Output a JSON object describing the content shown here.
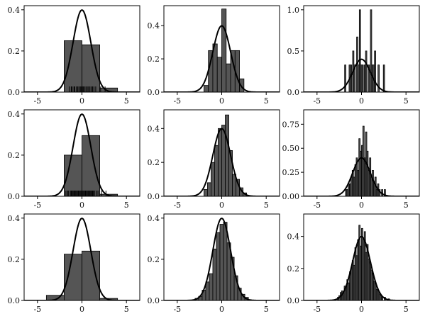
{
  "chart_data": [
    {
      "type": "bar",
      "panel": "row1-col1",
      "xlim": [
        -6.5,
        6.5
      ],
      "ylim": [
        0,
        0.42
      ],
      "xticks": [
        "-5",
        "0",
        "5"
      ],
      "yticks": [
        "0.0",
        "0.2",
        "0.4"
      ],
      "ytick_values": [
        0,
        0.2,
        0.4
      ],
      "bins": [
        {
          "x0": -2.0,
          "x1": 0.0,
          "y": 0.25
        },
        {
          "x0": 0.0,
          "x1": 2.0,
          "y": 0.23
        },
        {
          "x0": 2.0,
          "x1": 4.0,
          "y": 0.02
        }
      ],
      "rug": [
        -1.4,
        -1.2,
        -1.1,
        -0.9,
        -0.8,
        -0.6,
        -0.5,
        -0.35,
        -0.2,
        -0.1,
        0.05,
        0.15,
        0.3,
        0.45,
        0.6,
        0.75,
        0.9,
        1.05,
        1.2,
        1.35,
        1.55,
        2.1,
        2.6
      ],
      "curve": "normal"
    },
    {
      "type": "bar",
      "panel": "row1-col2",
      "xlim": [
        -6.5,
        6.5
      ],
      "ylim": [
        0,
        0.52
      ],
      "xticks": [
        "-5",
        "0",
        "5"
      ],
      "yticks": [
        "0.0",
        "0.2",
        "0.4"
      ],
      "ytick_values": [
        0,
        0.2,
        0.4
      ],
      "bins": [
        {
          "x0": -2.0,
          "x1": -1.5,
          "y": 0.04
        },
        {
          "x0": -1.5,
          "x1": -1.0,
          "y": 0.25
        },
        {
          "x0": -1.0,
          "x1": -0.5,
          "y": 0.29
        },
        {
          "x0": -0.5,
          "x1": 0.0,
          "y": 0.21
        },
        {
          "x0": 0.0,
          "x1": 0.5,
          "y": 0.5
        },
        {
          "x0": 0.5,
          "x1": 1.0,
          "y": 0.17
        },
        {
          "x0": 1.0,
          "x1": 1.5,
          "y": 0.25
        },
        {
          "x0": 1.5,
          "x1": 2.0,
          "y": 0.25
        },
        {
          "x0": 2.0,
          "x1": 2.5,
          "y": 0.08
        }
      ],
      "rug": [],
      "curve": "normal"
    },
    {
      "type": "bar",
      "panel": "row1-col3",
      "xlim": [
        -6.5,
        6.5
      ],
      "ylim": [
        0,
        1.05
      ],
      "xticks": [
        "-5",
        "0",
        "5"
      ],
      "yticks": [
        "0.0",
        "0.5",
        "1.0"
      ],
      "ytick_values": [
        0,
        0.5,
        1.0
      ],
      "bins": [
        {
          "x0": -1.9,
          "x1": -1.75,
          "y": 0.33
        },
        {
          "x0": -1.4,
          "x1": -1.25,
          "y": 0.33
        },
        {
          "x0": -1.25,
          "x1": -1.1,
          "y": 0.33
        },
        {
          "x0": -1.0,
          "x1": -0.85,
          "y": 0.5
        },
        {
          "x0": -0.85,
          "x1": -0.7,
          "y": 0.33
        },
        {
          "x0": -0.55,
          "x1": -0.4,
          "y": 0.67
        },
        {
          "x0": -0.4,
          "x1": -0.25,
          "y": 0.33
        },
        {
          "x0": -0.25,
          "x1": -0.1,
          "y": 1.0
        },
        {
          "x0": -0.1,
          "x1": 0.05,
          "y": 0.33
        },
        {
          "x0": 0.05,
          "x1": 0.2,
          "y": 0.33
        },
        {
          "x0": 0.3,
          "x1": 0.45,
          "y": 0.33
        },
        {
          "x0": 0.45,
          "x1": 0.6,
          "y": 0.5
        },
        {
          "x0": 0.75,
          "x1": 0.9,
          "y": 0.33
        },
        {
          "x0": 1.0,
          "x1": 1.15,
          "y": 1.0
        },
        {
          "x0": 1.15,
          "x1": 1.3,
          "y": 0.33
        },
        {
          "x0": 1.3,
          "x1": 1.45,
          "y": 0.33
        },
        {
          "x0": 1.45,
          "x1": 1.6,
          "y": 0.5
        },
        {
          "x0": 1.85,
          "x1": 2.0,
          "y": 0.33
        },
        {
          "x0": 2.45,
          "x1": 2.6,
          "y": 0.33
        }
      ],
      "rug": [],
      "curve": "normal"
    },
    {
      "type": "bar",
      "panel": "row2-col1",
      "xlim": [
        -6.5,
        6.5
      ],
      "ylim": [
        0,
        0.42
      ],
      "xticks": [
        "-5",
        "0",
        "5"
      ],
      "yticks": [
        "0.0",
        "0.2",
        "0.4"
      ],
      "ytick_values": [
        0,
        0.2,
        0.4
      ],
      "bins": [
        {
          "x0": -2.0,
          "x1": 0.0,
          "y": 0.2
        },
        {
          "x0": 0.0,
          "x1": 2.0,
          "y": 0.295
        },
        {
          "x0": 2.0,
          "x1": 4.0,
          "y": 0.01
        }
      ],
      "rug": [
        -1.8,
        -1.6,
        -1.5,
        -1.3,
        -1.2,
        -1.1,
        -1.0,
        -0.9,
        -0.8,
        -0.7,
        -0.6,
        -0.5,
        -0.4,
        -0.3,
        -0.2,
        -0.1,
        0.0,
        0.1,
        0.2,
        0.3,
        0.4,
        0.5,
        0.6,
        0.7,
        0.8,
        0.9,
        1.0,
        1.1,
        1.2,
        1.3,
        1.4,
        1.6,
        1.8,
        2.2,
        2.7
      ],
      "curve": "normal"
    },
    {
      "type": "bar",
      "panel": "row2-col2",
      "xlim": [
        -6.5,
        6.5
      ],
      "ylim": [
        0,
        0.51
      ],
      "xticks": [
        "-5",
        "0",
        "5"
      ],
      "yticks": [
        "0.0",
        "0.2",
        "0.4"
      ],
      "ytick_values": [
        0,
        0.2,
        0.4
      ],
      "bins": [
        {
          "x0": -2.0,
          "x1": -1.6,
          "y": 0.04
        },
        {
          "x0": -1.6,
          "x1": -1.2,
          "y": 0.08
        },
        {
          "x0": -1.2,
          "x1": -0.8,
          "y": 0.2
        },
        {
          "x0": -0.8,
          "x1": -0.4,
          "y": 0.3
        },
        {
          "x0": -0.4,
          "x1": 0.0,
          "y": 0.4
        },
        {
          "x0": 0.0,
          "x1": 0.4,
          "y": 0.42
        },
        {
          "x0": 0.4,
          "x1": 0.8,
          "y": 0.48
        },
        {
          "x0": 0.8,
          "x1": 1.2,
          "y": 0.27
        },
        {
          "x0": 1.2,
          "x1": 1.6,
          "y": 0.13
        },
        {
          "x0": 1.6,
          "x1": 2.0,
          "y": 0.1
        },
        {
          "x0": 2.0,
          "x1": 2.4,
          "y": 0.05
        },
        {
          "x0": 2.4,
          "x1": 2.8,
          "y": 0.02
        }
      ],
      "rug": [],
      "curve": "normal"
    },
    {
      "type": "bar",
      "panel": "row2-col3",
      "xlim": [
        -6.5,
        6.5
      ],
      "ylim": [
        0,
        0.9
      ],
      "xticks": [
        "-5",
        "0",
        "5"
      ],
      "yticks": [
        "0.00",
        "0.25",
        "0.50",
        "0.75"
      ],
      "ytick_values": [
        0,
        0.25,
        0.5,
        0.75
      ],
      "bins": [
        {
          "x0": -1.8,
          "x1": -1.65,
          "y": 0.07
        },
        {
          "x0": -1.65,
          "x1": -1.5,
          "y": 0.07
        },
        {
          "x0": -1.5,
          "x1": -1.35,
          "y": 0.13
        },
        {
          "x0": -1.35,
          "x1": -1.2,
          "y": 0.13
        },
        {
          "x0": -1.2,
          "x1": -1.05,
          "y": 0.2
        },
        {
          "x0": -1.05,
          "x1": -0.9,
          "y": 0.27
        },
        {
          "x0": -0.9,
          "x1": -0.75,
          "y": 0.2
        },
        {
          "x0": -0.75,
          "x1": -0.6,
          "y": 0.33
        },
        {
          "x0": -0.6,
          "x1": -0.45,
          "y": 0.4
        },
        {
          "x0": -0.45,
          "x1": -0.3,
          "y": 0.27
        },
        {
          "x0": -0.3,
          "x1": -0.15,
          "y": 0.6
        },
        {
          "x0": -0.15,
          "x1": 0.0,
          "y": 0.47
        },
        {
          "x0": 0.0,
          "x1": 0.15,
          "y": 0.53
        },
        {
          "x0": 0.15,
          "x1": 0.3,
          "y": 0.73
        },
        {
          "x0": 0.3,
          "x1": 0.45,
          "y": 0.4
        },
        {
          "x0": 0.45,
          "x1": 0.6,
          "y": 0.67
        },
        {
          "x0": 0.6,
          "x1": 0.75,
          "y": 0.47
        },
        {
          "x0": 0.75,
          "x1": 0.9,
          "y": 0.27
        },
        {
          "x0": 0.9,
          "x1": 1.05,
          "y": 0.4
        },
        {
          "x0": 1.05,
          "x1": 1.2,
          "y": 0.2
        },
        {
          "x0": 1.2,
          "x1": 1.35,
          "y": 0.27
        },
        {
          "x0": 1.35,
          "x1": 1.5,
          "y": 0.13
        },
        {
          "x0": 1.5,
          "x1": 1.65,
          "y": 0.2
        },
        {
          "x0": 1.65,
          "x1": 1.8,
          "y": 0.07
        },
        {
          "x0": 1.8,
          "x1": 1.95,
          "y": 0.13
        },
        {
          "x0": 1.95,
          "x1": 2.1,
          "y": 0.07
        },
        {
          "x0": 2.25,
          "x1": 2.4,
          "y": 0.07
        },
        {
          "x0": 2.55,
          "x1": 2.7,
          "y": 0.07
        }
      ],
      "rug": [],
      "curve": "normal"
    },
    {
      "type": "bar",
      "panel": "row3-col1",
      "xlim": [
        -6.5,
        6.5
      ],
      "ylim": [
        0,
        0.42
      ],
      "xticks": [
        "-5",
        "0",
        "5"
      ],
      "yticks": [
        "0.0",
        "0.2",
        "0.4"
      ],
      "ytick_values": [
        0,
        0.2,
        0.4
      ],
      "bins": [
        {
          "x0": -4.0,
          "x1": -2.0,
          "y": 0.025
        },
        {
          "x0": -2.0,
          "x1": 0.0,
          "y": 0.225
        },
        {
          "x0": 0.0,
          "x1": 2.0,
          "y": 0.24
        },
        {
          "x0": 2.0,
          "x1": 4.0,
          "y": 0.01
        }
      ],
      "rug": [],
      "curve": "normal"
    },
    {
      "type": "bar",
      "panel": "row3-col2",
      "xlim": [
        -6.5,
        6.5
      ],
      "ylim": [
        0,
        0.42
      ],
      "xticks": [
        "-5",
        "0",
        "5"
      ],
      "yticks": [
        "0.0",
        "0.2",
        "0.4"
      ],
      "ytick_values": [
        0,
        0.2,
        0.4
      ],
      "bins": [
        {
          "x0": -3.0,
          "x1": -2.6,
          "y": 0.01
        },
        {
          "x0": -2.6,
          "x1": -2.2,
          "y": 0.02
        },
        {
          "x0": -2.2,
          "x1": -1.8,
          "y": 0.05
        },
        {
          "x0": -1.8,
          "x1": -1.4,
          "y": 0.09
        },
        {
          "x0": -1.4,
          "x1": -1.0,
          "y": 0.13
        },
        {
          "x0": -1.0,
          "x1": -0.6,
          "y": 0.25
        },
        {
          "x0": -0.6,
          "x1": -0.2,
          "y": 0.33
        },
        {
          "x0": -0.2,
          "x1": 0.2,
          "y": 0.37
        },
        {
          "x0": 0.2,
          "x1": 0.6,
          "y": 0.38
        },
        {
          "x0": 0.6,
          "x1": 1.0,
          "y": 0.28
        },
        {
          "x0": 1.0,
          "x1": 1.4,
          "y": 0.21
        },
        {
          "x0": 1.4,
          "x1": 1.8,
          "y": 0.12
        },
        {
          "x0": 1.8,
          "x1": 2.2,
          "y": 0.06
        },
        {
          "x0": 2.2,
          "x1": 2.6,
          "y": 0.03
        },
        {
          "x0": 2.6,
          "x1": 3.0,
          "y": 0.015
        }
      ],
      "rug": [],
      "curve": "normal"
    },
    {
      "type": "bar",
      "panel": "row3-col3",
      "xlim": [
        -6.5,
        6.5
      ],
      "ylim": [
        0,
        0.54
      ],
      "xticks": [
        "-5",
        "0",
        "5"
      ],
      "yticks": [
        "0.0",
        "0.2",
        "0.4"
      ],
      "ytick_values": [
        0,
        0.2,
        0.4
      ],
      "bins": [
        {
          "x0": -2.7,
          "x1": -2.55,
          "y": 0.02
        },
        {
          "x0": -2.55,
          "x1": -2.4,
          "y": 0.03
        },
        {
          "x0": -2.4,
          "x1": -2.25,
          "y": 0.05
        },
        {
          "x0": -2.25,
          "x1": -2.1,
          "y": 0.06
        },
        {
          "x0": -2.1,
          "x1": -1.95,
          "y": 0.05
        },
        {
          "x0": -1.95,
          "x1": -1.8,
          "y": 0.09
        },
        {
          "x0": -1.8,
          "x1": -1.65,
          "y": 0.08
        },
        {
          "x0": -1.65,
          "x1": -1.5,
          "y": 0.13
        },
        {
          "x0": -1.5,
          "x1": -1.35,
          "y": 0.11
        },
        {
          "x0": -1.35,
          "x1": -1.2,
          "y": 0.18
        },
        {
          "x0": -1.2,
          "x1": -1.05,
          "y": 0.2
        },
        {
          "x0": -1.05,
          "x1": -0.9,
          "y": 0.25
        },
        {
          "x0": -0.9,
          "x1": -0.75,
          "y": 0.22
        },
        {
          "x0": -0.75,
          "x1": -0.6,
          "y": 0.33
        },
        {
          "x0": -0.6,
          "x1": -0.45,
          "y": 0.28
        },
        {
          "x0": -0.45,
          "x1": -0.3,
          "y": 0.38
        },
        {
          "x0": -0.3,
          "x1": -0.15,
          "y": 0.47
        },
        {
          "x0": -0.15,
          "x1": 0.0,
          "y": 0.34
        },
        {
          "x0": 0.0,
          "x1": 0.15,
          "y": 0.45
        },
        {
          "x0": 0.15,
          "x1": 0.3,
          "y": 0.38
        },
        {
          "x0": 0.3,
          "x1": 0.45,
          "y": 0.43
        },
        {
          "x0": 0.45,
          "x1": 0.6,
          "y": 0.3
        },
        {
          "x0": 0.6,
          "x1": 0.75,
          "y": 0.35
        },
        {
          "x0": 0.75,
          "x1": 0.9,
          "y": 0.26
        },
        {
          "x0": 0.9,
          "x1": 1.05,
          "y": 0.24
        },
        {
          "x0": 1.05,
          "x1": 1.2,
          "y": 0.19
        },
        {
          "x0": 1.2,
          "x1": 1.35,
          "y": 0.17
        },
        {
          "x0": 1.35,
          "x1": 1.5,
          "y": 0.12
        },
        {
          "x0": 1.5,
          "x1": 1.65,
          "y": 0.11
        },
        {
          "x0": 1.65,
          "x1": 1.8,
          "y": 0.07
        },
        {
          "x0": 1.8,
          "x1": 1.95,
          "y": 0.06
        },
        {
          "x0": 1.95,
          "x1": 2.1,
          "y": 0.04
        },
        {
          "x0": 2.1,
          "x1": 2.25,
          "y": 0.03
        },
        {
          "x0": 2.25,
          "x1": 2.4,
          "y": 0.02
        },
        {
          "x0": 2.55,
          "x1": 2.7,
          "y": 0.02
        },
        {
          "x0": 3.0,
          "x1": 3.15,
          "y": 0.01
        }
      ],
      "rug": [],
      "curve": "normal"
    }
  ],
  "colors": {
    "bar_fill": "#555555",
    "bar_edge": "#000000",
    "curve": "#000000",
    "axes": "#000000",
    "background": "#ffffff"
  }
}
